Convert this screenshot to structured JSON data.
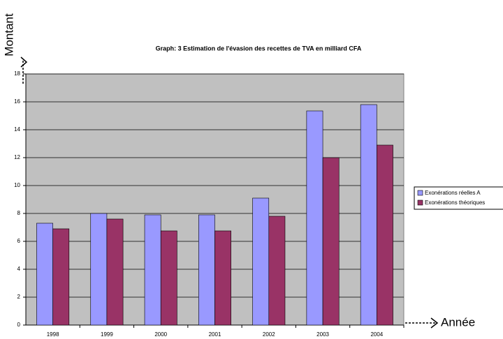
{
  "chart_data": {
    "type": "bar",
    "title": "Graph: 3  Estimation de l'évasion des recettes de TVA en milliard CFA",
    "annotations": [
      "Montant",
      "Année"
    ],
    "categories": [
      "1998",
      "1999",
      "2000",
      "2001",
      "2002",
      "2003",
      "2004"
    ],
    "series": [
      {
        "name": "Exonérations réelles A",
        "color": "#9999ff",
        "values": [
          7.3,
          8.0,
          7.9,
          7.9,
          9.1,
          15.35,
          15.8
        ]
      },
      {
        "name": "Exonérations théoriques",
        "color": "#993366",
        "values": [
          6.9,
          7.6,
          6.75,
          6.75,
          7.8,
          12.0,
          12.9
        ]
      }
    ],
    "ylim": [
      0,
      18
    ],
    "yticks": [
      0,
      2,
      4,
      6,
      8,
      10,
      12,
      14,
      16,
      18
    ],
    "grid": true,
    "legend": "right"
  }
}
